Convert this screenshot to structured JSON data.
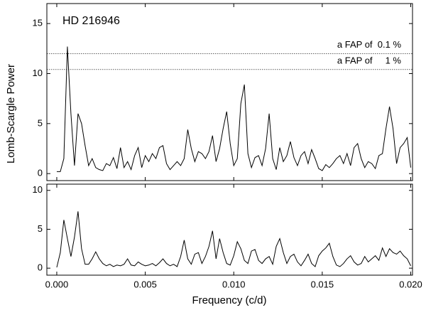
{
  "chart_data": [
    {
      "type": "line",
      "title": "HD 216946",
      "y_label": "Lomb-Scargle Power",
      "x": [
        0,
        0.0002,
        0.0004,
        0.0006,
        0.0008,
        0.001,
        0.0012,
        0.0014,
        0.0016,
        0.0018,
        0.002,
        0.0022,
        0.0024,
        0.0026,
        0.0028,
        0.003,
        0.0032,
        0.0034,
        0.0036,
        0.0038,
        0.004,
        0.0042,
        0.0044,
        0.0046,
        0.0048,
        0.005,
        0.0052,
        0.0054,
        0.0056,
        0.0058,
        0.006,
        0.0062,
        0.0064,
        0.0066,
        0.0068,
        0.007,
        0.0072,
        0.0074,
        0.0076,
        0.0078,
        0.008,
        0.0082,
        0.0084,
        0.0086,
        0.0088,
        0.009,
        0.0092,
        0.0094,
        0.0096,
        0.0098,
        0.01,
        0.0102,
        0.0104,
        0.0106,
        0.0108,
        0.011,
        0.0112,
        0.0114,
        0.0116,
        0.0118,
        0.012,
        0.0122,
        0.0124,
        0.0126,
        0.0128,
        0.013,
        0.0132,
        0.0134,
        0.0136,
        0.0138,
        0.014,
        0.0142,
        0.0144,
        0.0146,
        0.0148,
        0.015,
        0.0152,
        0.0154,
        0.0156,
        0.0158,
        0.016,
        0.0162,
        0.0164,
        0.0166,
        0.0168,
        0.017,
        0.0172,
        0.0174,
        0.0176,
        0.0178,
        0.018,
        0.0182,
        0.0184,
        0.0186,
        0.0188,
        0.019,
        0.0192,
        0.0194,
        0.0196,
        0.0198,
        0.02
      ],
      "series": [
        {
          "color": "#000000",
          "values": [
            0.2,
            0.2,
            1.5,
            12.7,
            6,
            0.8,
            6.0,
            5.0,
            2.8,
            0.8,
            1.5,
            0.6,
            0.4,
            0.3,
            1.0,
            0.8,
            1.6,
            0.5,
            2.6,
            0.6,
            1.2,
            0.4,
            1.8,
            2.6,
            0.6,
            1.8,
            1.2,
            2.0,
            1.5,
            2.6,
            2.8,
            1.0,
            0.4,
            0.8,
            1.2,
            0.8,
            1.5,
            4.4,
            2.5,
            1.2,
            2.2,
            2.0,
            1.5,
            2.2,
            3.8,
            1.2,
            2.5,
            4.5,
            6.2,
            3.0,
            0.8,
            1.5,
            7.0,
            8.9,
            2.0,
            0.6,
            1.6,
            1.8,
            0.8,
            2.5,
            6.0,
            1.5,
            0.4,
            2.6,
            1.2,
            1.8,
            3.2,
            1.6,
            0.8,
            1.8,
            2.2,
            1.0,
            2.4,
            1.5,
            0.5,
            0.3,
            0.9,
            0.6,
            1.0,
            1.5,
            1.8,
            1.0,
            2.0,
            0.8,
            2.6,
            3.0,
            1.5,
            0.6,
            1.2,
            1.0,
            0.5,
            1.8,
            2.0,
            4.5,
            6.7,
            4.5,
            1.0,
            2.6,
            3.0,
            3.6,
            0.6
          ]
        }
      ],
      "fap_lines": [
        {
          "value": 12.0,
          "label": "a FAP of  0.1 %"
        },
        {
          "value": 10.4,
          "label": "a FAP of     1 %"
        }
      ],
      "xlim": [
        -0.00056,
        0.0201
      ],
      "ylim": [
        -0.7,
        17
      ],
      "yticks": [
        0,
        5,
        10,
        15
      ]
    },
    {
      "type": "line",
      "x_label": "Frequency (c/d)",
      "x": [
        0,
        0.0002,
        0.0004,
        0.0006,
        0.0008,
        0.001,
        0.0012,
        0.0014,
        0.0016,
        0.0018,
        0.002,
        0.0022,
        0.0024,
        0.0026,
        0.0028,
        0.003,
        0.0032,
        0.0034,
        0.0036,
        0.0038,
        0.004,
        0.0042,
        0.0044,
        0.0046,
        0.0048,
        0.005,
        0.0052,
        0.0054,
        0.0056,
        0.0058,
        0.006,
        0.0062,
        0.0064,
        0.0066,
        0.0068,
        0.007,
        0.0072,
        0.0074,
        0.0076,
        0.0078,
        0.008,
        0.0082,
        0.0084,
        0.0086,
        0.0088,
        0.009,
        0.0092,
        0.0094,
        0.0096,
        0.0098,
        0.01,
        0.0102,
        0.0104,
        0.0106,
        0.0108,
        0.011,
        0.0112,
        0.0114,
        0.0116,
        0.0118,
        0.012,
        0.0122,
        0.0124,
        0.0126,
        0.0128,
        0.013,
        0.0132,
        0.0134,
        0.0136,
        0.0138,
        0.014,
        0.0142,
        0.0144,
        0.0146,
        0.0148,
        0.015,
        0.0152,
        0.0154,
        0.0156,
        0.0158,
        0.016,
        0.0162,
        0.0164,
        0.0166,
        0.0168,
        0.017,
        0.0172,
        0.0174,
        0.0176,
        0.0178,
        0.018,
        0.0182,
        0.0184,
        0.0186,
        0.0188,
        0.019,
        0.0192,
        0.0194,
        0.0196,
        0.0198,
        0.02
      ],
      "series": [
        {
          "color": "#000000",
          "values": [
            0.1,
            2.0,
            6.2,
            3.8,
            1.5,
            4.0,
            7.3,
            2.5,
            0.5,
            0.5,
            1.2,
            2.1,
            1.2,
            0.6,
            0.3,
            0.5,
            0.2,
            0.4,
            0.3,
            0.5,
            1.2,
            0.4,
            0.3,
            0.8,
            0.5,
            0.3,
            0.4,
            0.6,
            0.3,
            0.7,
            1.2,
            0.6,
            0.3,
            0.5,
            0.2,
            1.5,
            3.6,
            1.2,
            0.5,
            1.8,
            2.0,
            0.6,
            1.5,
            2.8,
            4.8,
            1.2,
            3.8,
            2.0,
            0.6,
            0.4,
            1.6,
            3.4,
            2.5,
            1.0,
            0.6,
            2.2,
            2.4,
            1.0,
            0.6,
            1.2,
            1.5,
            0.5,
            2.8,
            3.8,
            2.0,
            0.6,
            1.5,
            1.8,
            0.8,
            0.3,
            1.0,
            1.8,
            0.6,
            0.2,
            1.6,
            2.2,
            2.6,
            3.2,
            1.5,
            0.4,
            0.2,
            0.6,
            1.2,
            1.6,
            0.8,
            0.4,
            0.6,
            1.5,
            0.8,
            1.2,
            1.6,
            1.0,
            2.6,
            1.5,
            2.5,
            2.0,
            1.8,
            2.2,
            1.6,
            1.2,
            0.3
          ]
        }
      ],
      "xlim": [
        -0.00056,
        0.0201
      ],
      "ylim": [
        -0.9,
        10.8
      ],
      "yticks": [
        0,
        5,
        10
      ],
      "xticks": [
        {
          "value": 0,
          "label": "0.000"
        },
        {
          "value": 0.005,
          "label": "0.005"
        },
        {
          "value": 0.01,
          "label": "0.010"
        },
        {
          "value": 0.015,
          "label": "0.015"
        },
        {
          "value": 0.02,
          "label": "0.020"
        }
      ]
    }
  ]
}
